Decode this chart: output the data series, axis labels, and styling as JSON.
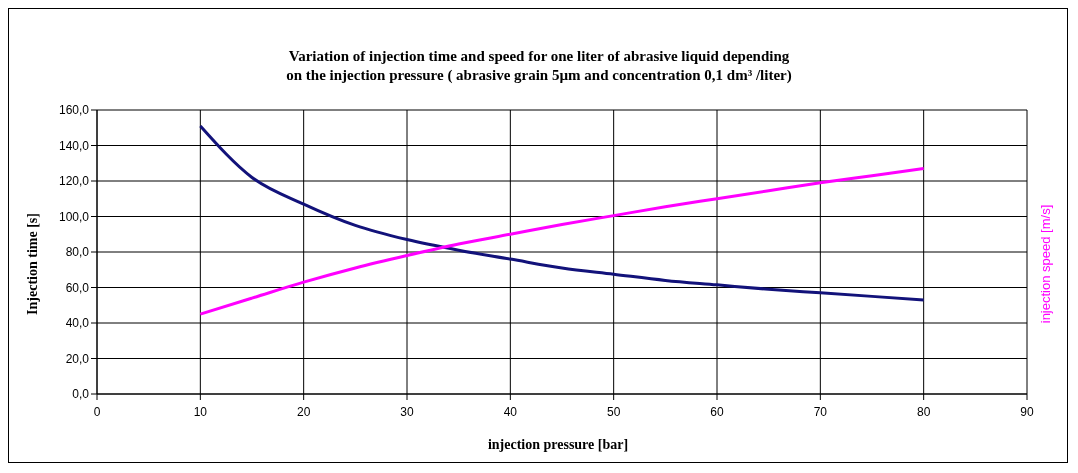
{
  "chart_data": {
    "type": "line",
    "title": "Variation of injection time and speed for one liter of abrasive liquid depending\non the injection pressure ( abrasive grain  5µm  and concentration 0,1 dm³ /liter)",
    "xlabel": "injection pressure [bar]",
    "ylabel": "Injection time [s]",
    "y2label": "injection speed [m/s]",
    "x": [
      10,
      15,
      20,
      25,
      30,
      35,
      40,
      45,
      50,
      55,
      60,
      65,
      70,
      75,
      80
    ],
    "series": [
      {
        "color": "#12127a",
        "values": [
          151,
          122,
          107,
          95,
          87,
          81,
          76,
          71,
          67.5,
          64,
          61.5,
          59,
          57,
          55,
          53
        ]
      },
      {
        "color": "#ff00ff",
        "values": [
          45,
          54,
          63,
          71,
          78,
          84.5,
          90,
          95.5,
          100.5,
          105.5,
          110,
          114.5,
          119,
          123,
          127
        ]
      }
    ],
    "xlim": [
      0,
      90
    ],
    "xticks": [
      0,
      10,
      20,
      30,
      40,
      50,
      60,
      70,
      80,
      90
    ],
    "ylim": [
      0,
      160
    ],
    "yticks": [
      {
        "value": 0,
        "label": "0,0"
      },
      {
        "value": 20,
        "label": "20,0"
      },
      {
        "value": 40,
        "label": "40,0"
      },
      {
        "value": 60,
        "label": "60,0"
      },
      {
        "value": 80,
        "label": "80,0"
      },
      {
        "value": 100,
        "label": "100,0"
      },
      {
        "value": 120,
        "label": "120,0"
      },
      {
        "value": 140,
        "label": "140,0"
      },
      {
        "value": 160,
        "label": "160,0"
      }
    ],
    "grid": true,
    "legend": false,
    "marker": "none",
    "line_style": "solid"
  }
}
